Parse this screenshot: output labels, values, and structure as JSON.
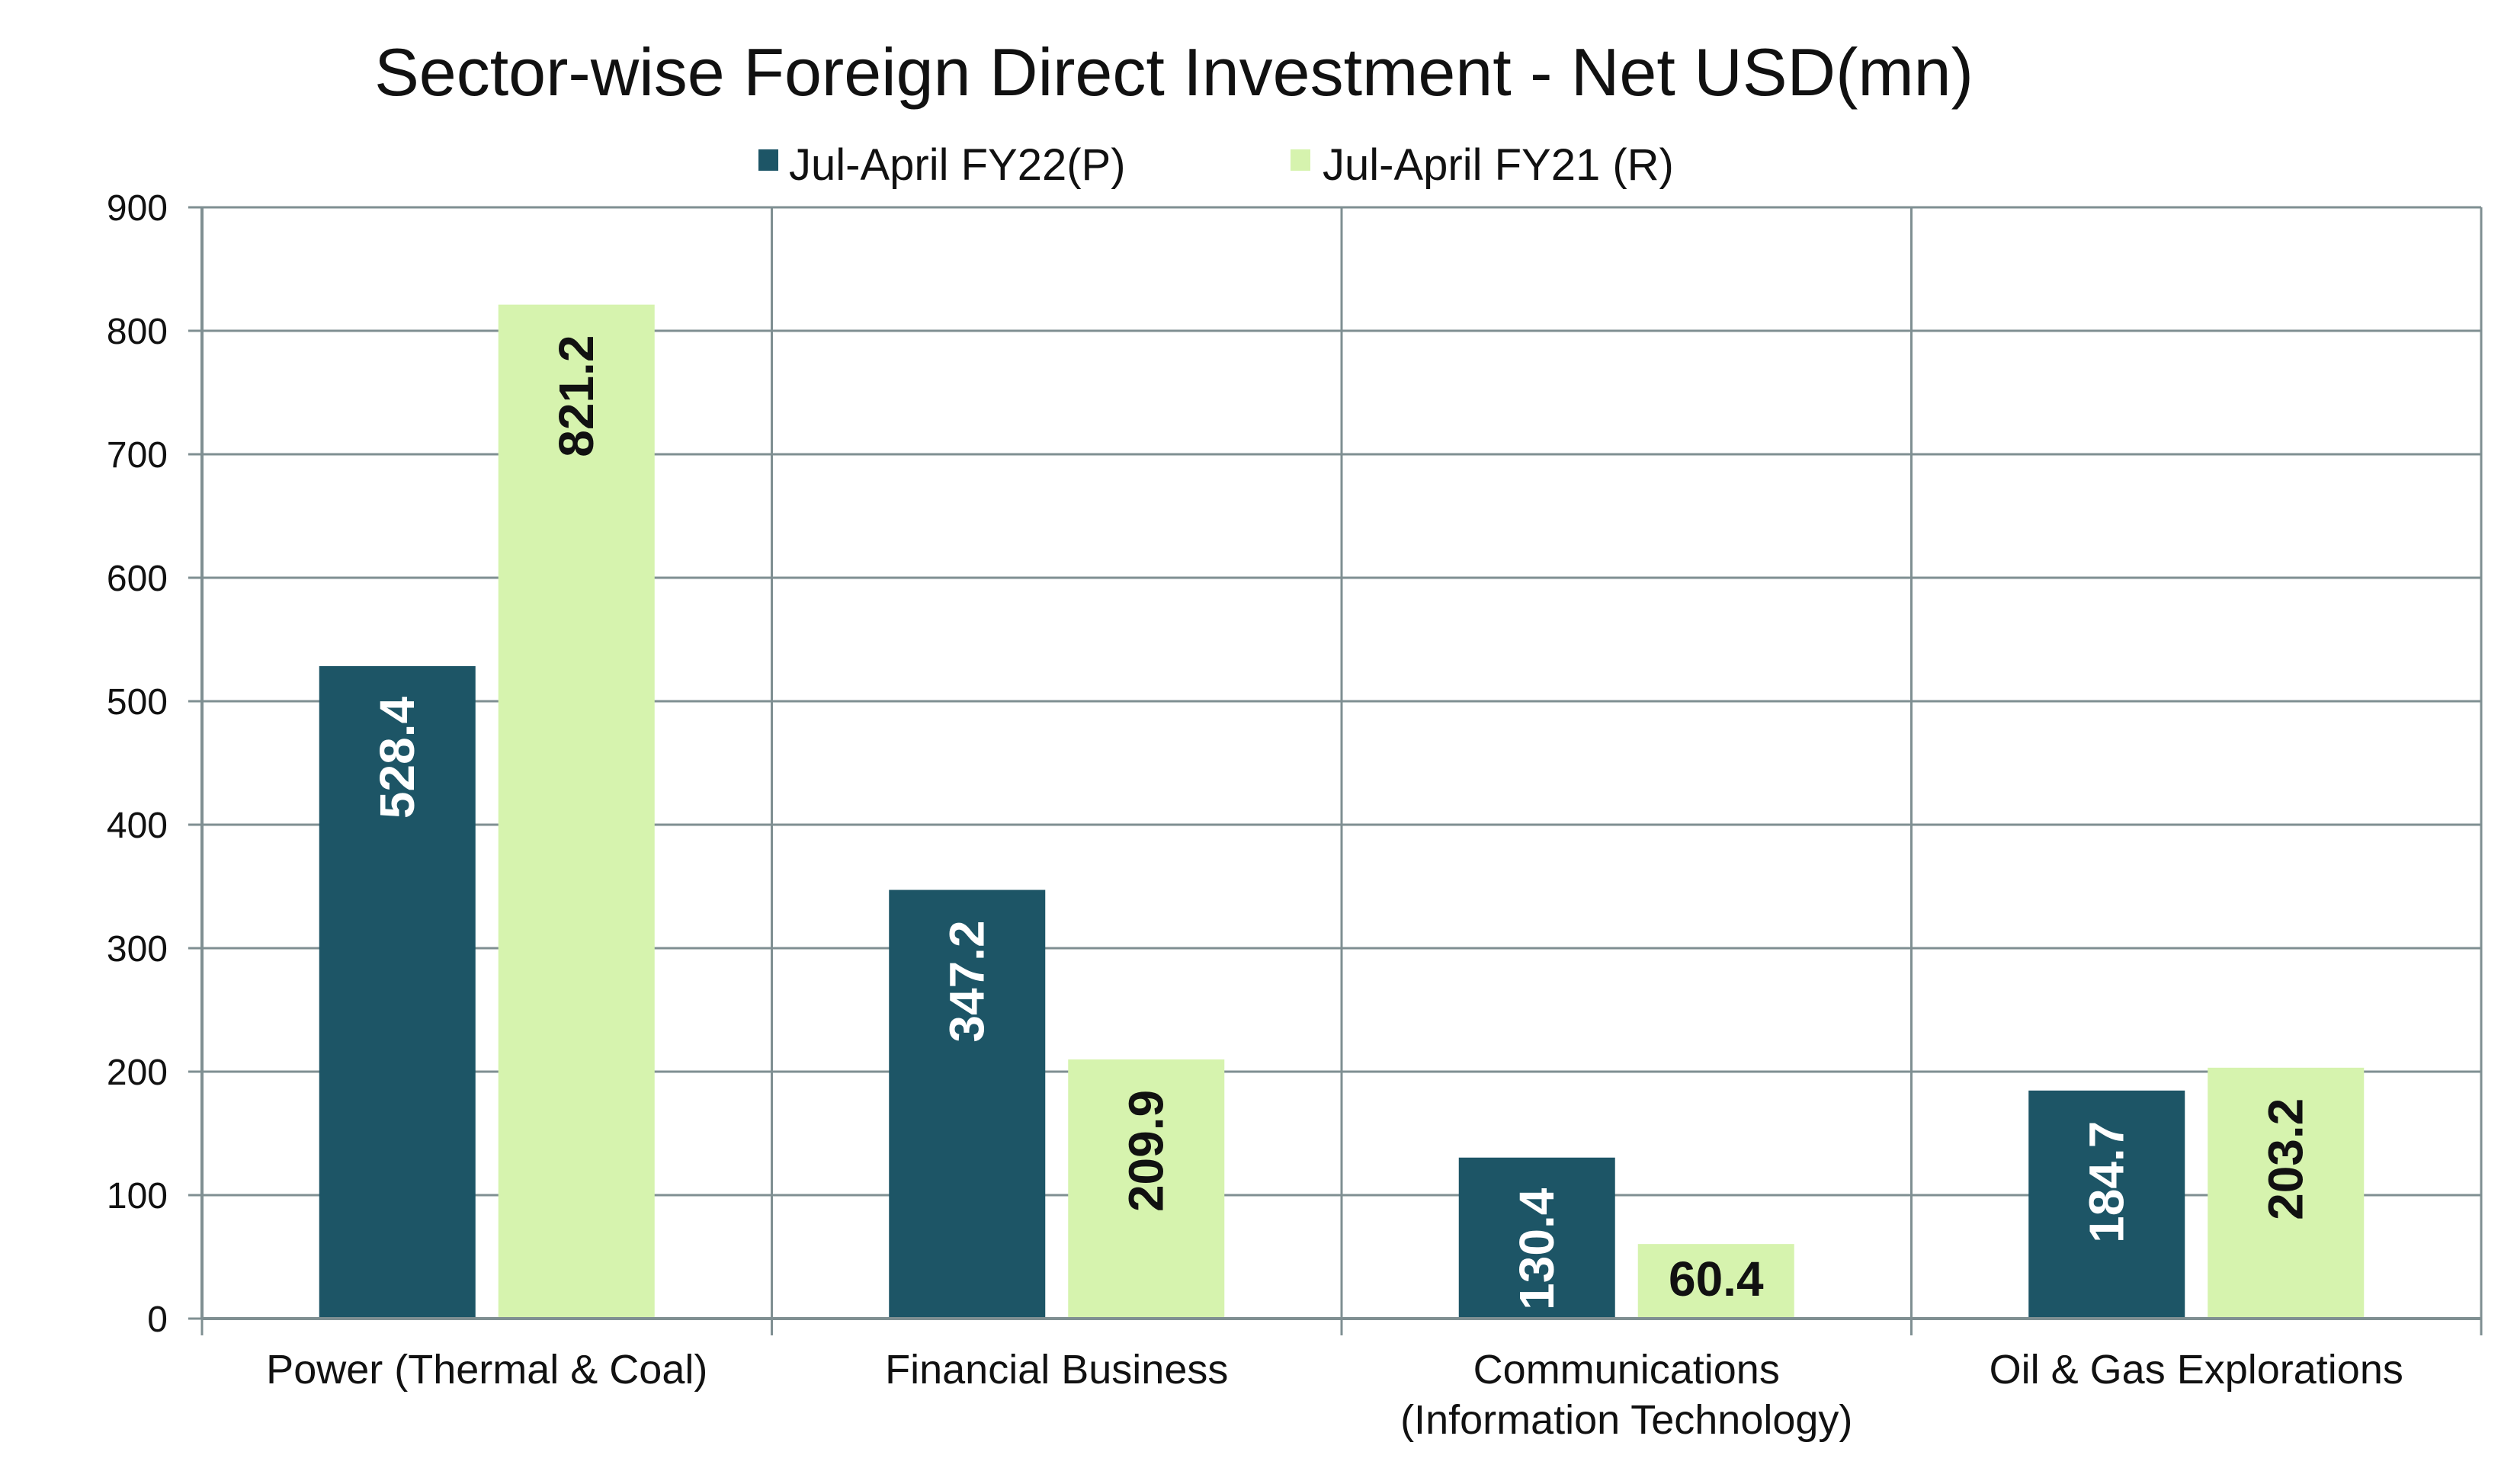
{
  "chart_data": {
    "type": "bar",
    "title": "Sector-wise Foreign Direct Investment - Net USD(mn)",
    "categories": [
      [
        "Power (Thermal & Coal)"
      ],
      [
        "Financial Business"
      ],
      [
        "Communications",
        "(Information Technology)"
      ],
      [
        "Oil & Gas Explorations"
      ]
    ],
    "series": [
      {
        "name": "Jul-April FY22(P)",
        "values": [
          528.4,
          347.2,
          130.4,
          184.7
        ],
        "color": "#1d5566",
        "label_color": "#ffffff"
      },
      {
        "name": "Jul-April FY21 (R)",
        "values": [
          821.2,
          209.9,
          60.4,
          203.2
        ],
        "color": "#d6f3ae",
        "label_color": "#111111"
      }
    ],
    "data_labels": [
      [
        "528.4",
        "347.2",
        "130.4",
        "184.7"
      ],
      [
        "821.2",
        "209.9",
        "60.4",
        "203.2"
      ]
    ],
    "label_orientation": [
      [
        "vertical",
        "vertical",
        "vertical",
        "vertical"
      ],
      [
        "vertical",
        "vertical",
        "horizontal",
        "vertical"
      ]
    ],
    "ylim": [
      0,
      900
    ],
    "yticks": [
      "0",
      "100",
      "200",
      "300",
      "400",
      "500",
      "600",
      "700",
      "800",
      "900"
    ],
    "grid": true,
    "legend_position": "top-center",
    "xlabel": "",
    "ylabel": ""
  }
}
